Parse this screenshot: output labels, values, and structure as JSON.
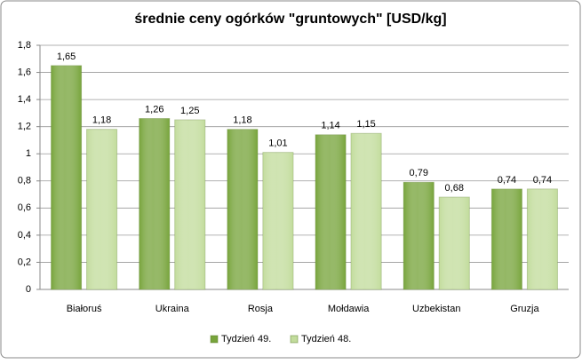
{
  "chart_data": {
    "type": "bar",
    "title": "średnie ceny ogórków \"gruntowych\" [USD/kg]",
    "categories": [
      "Białoruś",
      "Ukraina",
      "Rosja",
      "Mołdawia",
      "Uzbekistan",
      "Gruzja"
    ],
    "series": [
      {
        "name": "Tydzień 49.",
        "color": "#77a43b",
        "values": [
          1.65,
          1.26,
          1.18,
          1.14,
          0.79,
          0.74
        ],
        "value_labels": [
          "1,65",
          "1,26",
          "1,18",
          "1,14",
          "0,79",
          "0,74"
        ]
      },
      {
        "name": "Tydzień 48.",
        "color": "#c2dc9c",
        "values": [
          1.18,
          1.25,
          1.01,
          1.15,
          0.68,
          0.74
        ],
        "value_labels": [
          "1,18",
          "1,25",
          "1,01",
          "1,15",
          "0,68",
          "0,74"
        ]
      }
    ],
    "ylim": [
      0,
      1.8
    ],
    "yticks": [
      0,
      {
        "value": 0.2,
        "label": "0,2"
      },
      {
        "value": 0.4,
        "label": "0,4"
      },
      {
        "value": 0.6,
        "label": "0,6"
      },
      {
        "value": 0.8,
        "label": "0,8"
      },
      1,
      {
        "value": 1.2,
        "label": "1,2"
      },
      {
        "value": 1.4,
        "label": "1,4"
      },
      {
        "value": 1.6,
        "label": "1,6"
      },
      {
        "value": 1.8,
        "label": "1,8"
      }
    ],
    "grid": true,
    "legend": "bottom"
  }
}
